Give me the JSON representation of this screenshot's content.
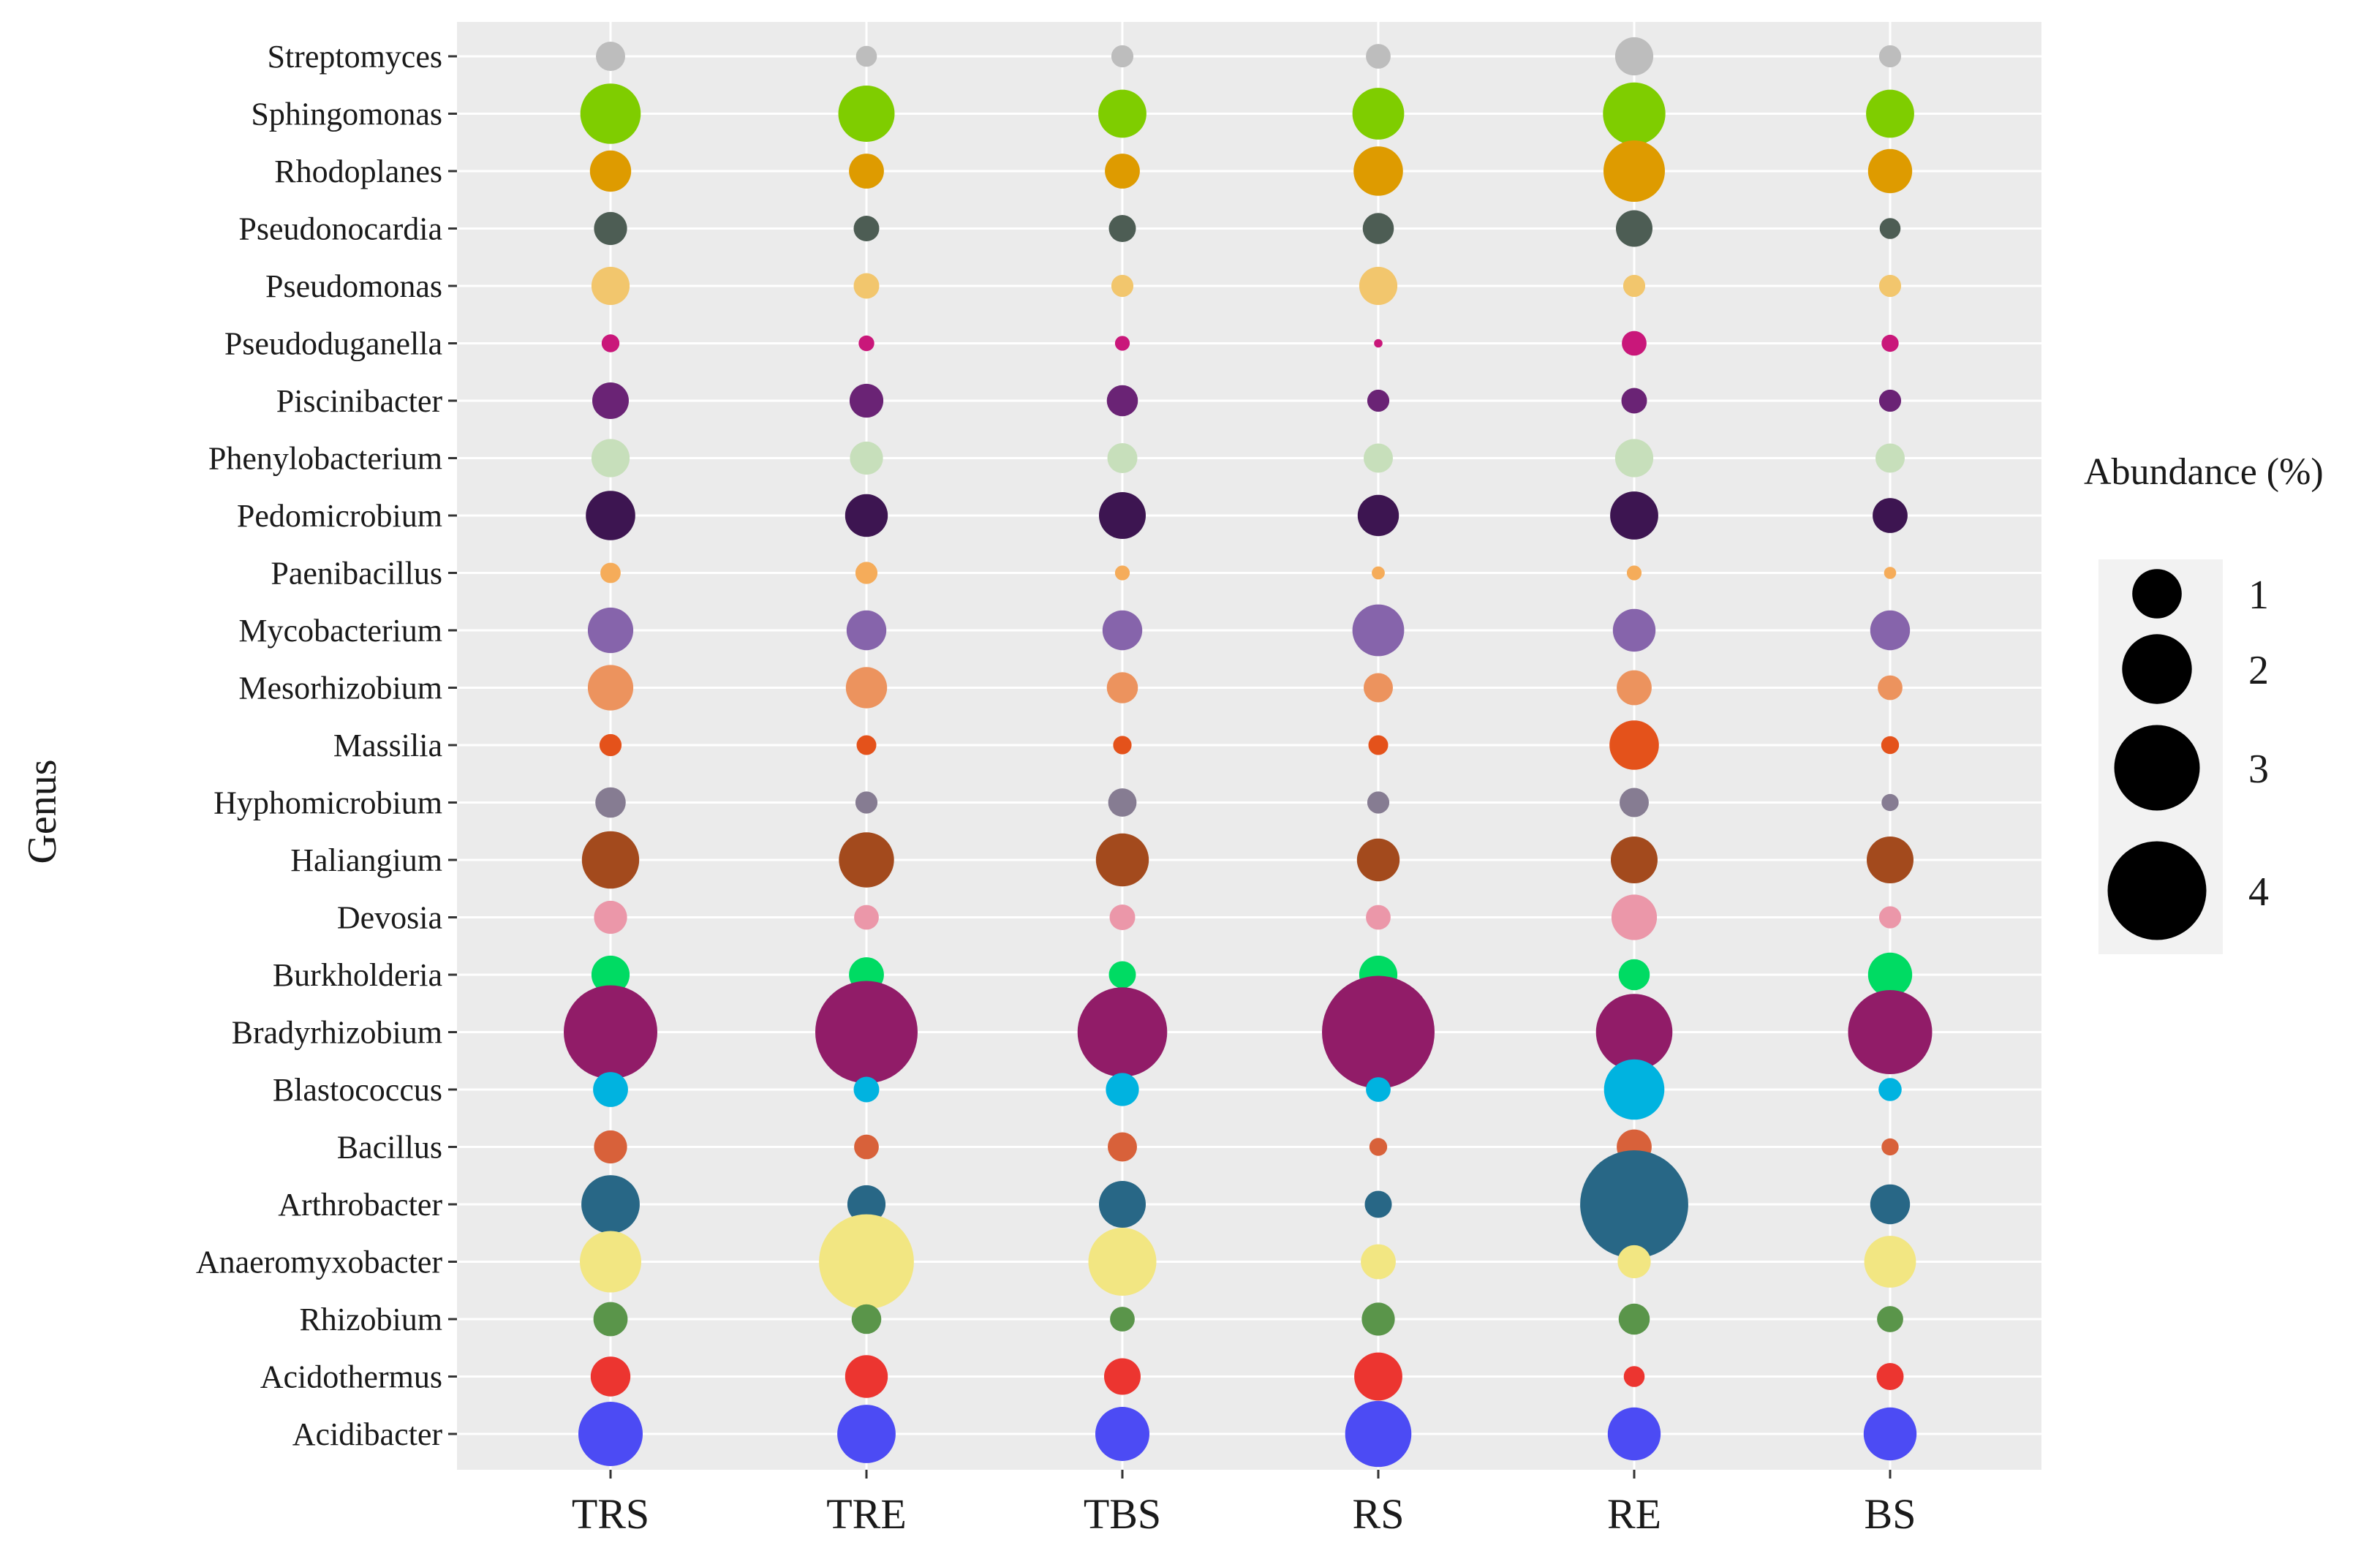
{
  "chart_data": {
    "type": "bubble",
    "ylabel": "Genus",
    "legend_title": "Abundance (%)",
    "legend_values": [
      1,
      2,
      3,
      4
    ],
    "legend_labels": [
      "1",
      "2",
      "3",
      "4"
    ],
    "samples": [
      "TRS",
      "TRE",
      "TBS",
      "RS",
      "RE",
      "BS"
    ],
    "genera": [
      {
        "name": "Streptomyces",
        "color": "#bdbdbd",
        "values": [
          0.35,
          0.18,
          0.2,
          0.25,
          0.6,
          0.2
        ]
      },
      {
        "name": "Sphingomonas",
        "color": "#7fcd00",
        "values": [
          1.5,
          1.3,
          0.95,
          1.1,
          1.6,
          0.95
        ]
      },
      {
        "name": "Rhodoplanes",
        "color": "#de9b00",
        "values": [
          0.7,
          0.5,
          0.5,
          1.0,
          1.55,
          0.8
        ]
      },
      {
        "name": "Pseudonocardia",
        "color": "#4d5d54",
        "values": [
          0.45,
          0.27,
          0.3,
          0.4,
          0.55,
          0.18
        ]
      },
      {
        "name": "Pseudomonas",
        "color": "#f2c66d",
        "values": [
          0.6,
          0.27,
          0.2,
          0.6,
          0.2,
          0.2
        ]
      },
      {
        "name": "Pseudoduganella",
        "color": "#c9177a",
        "values": [
          0.13,
          0.1,
          0.09,
          0.03,
          0.25,
          0.12
        ]
      },
      {
        "name": "Piscinibacter",
        "color": "#6a2375",
        "values": [
          0.55,
          0.47,
          0.4,
          0.2,
          0.27,
          0.2
        ]
      },
      {
        "name": "Phenylobacterium",
        "color": "#c7dfbb",
        "values": [
          0.6,
          0.45,
          0.37,
          0.35,
          0.6,
          0.35
        ]
      },
      {
        "name": "Pedomicrobium",
        "color": "#3d1551",
        "values": [
          1.0,
          0.75,
          0.9,
          0.7,
          0.95,
          0.5
        ]
      },
      {
        "name": "Paenibacillus",
        "color": "#f5ac5a",
        "values": [
          0.17,
          0.2,
          0.09,
          0.07,
          0.09,
          0.06
        ]
      },
      {
        "name": "Mycobacterium",
        "color": "#8664ab",
        "values": [
          0.85,
          0.65,
          0.65,
          1.1,
          0.75,
          0.65
        ]
      },
      {
        "name": "Mesorhizobium",
        "color": "#ec935e",
        "values": [
          0.85,
          0.7,
          0.4,
          0.35,
          0.5,
          0.25
        ]
      },
      {
        "name": "Massilia",
        "color": "#e4521b",
        "values": [
          0.2,
          0.16,
          0.14,
          0.16,
          1.0,
          0.13
        ]
      },
      {
        "name": "Hyphomicrobium",
        "color": "#867c92",
        "values": [
          0.38,
          0.2,
          0.33,
          0.2,
          0.35,
          0.12
        ]
      },
      {
        "name": "Haliangium",
        "color": "#a34a1d",
        "values": [
          1.35,
          1.25,
          1.15,
          0.75,
          0.9,
          0.9
        ]
      },
      {
        "name": "Devosia",
        "color": "#eb97a9",
        "values": [
          0.45,
          0.25,
          0.27,
          0.25,
          0.85,
          0.2
        ]
      },
      {
        "name": "Burkholderia",
        "color": "#00db63",
        "values": [
          0.6,
          0.5,
          0.3,
          0.6,
          0.4,
          0.8
        ]
      },
      {
        "name": "Bradyrhizobium",
        "color": "#911c68",
        "values": [
          3.6,
          4.3,
          3.3,
          5.2,
          2.4,
          2.9
        ]
      },
      {
        "name": "Blastococcus",
        "color": "#00b3e0",
        "values": [
          0.5,
          0.27,
          0.45,
          0.25,
          1.5,
          0.22
        ]
      },
      {
        "name": "Bacillus",
        "color": "#d8613a",
        "values": [
          0.45,
          0.25,
          0.35,
          0.13,
          0.5,
          0.12
        ]
      },
      {
        "name": "Arthrobacter",
        "color": "#286786",
        "values": [
          1.4,
          0.6,
          0.9,
          0.3,
          4.8,
          0.65
        ]
      },
      {
        "name": "Anaeromyxobacter",
        "color": "#f2e682",
        "values": [
          1.55,
          3.7,
          1.9,
          0.5,
          0.45,
          1.1
        ]
      },
      {
        "name": "Rhizobium",
        "color": "#5a954a",
        "values": [
          0.48,
          0.36,
          0.25,
          0.45,
          0.4,
          0.28
        ]
      },
      {
        "name": "Acidothermus",
        "color": "#ec3530",
        "values": [
          0.65,
          0.75,
          0.55,
          0.95,
          0.18,
          0.3
        ]
      },
      {
        "name": "Acidibacter",
        "color": "#4c4bf4",
        "values": [
          1.7,
          1.4,
          1.2,
          1.8,
          1.15,
          1.15
        ]
      }
    ]
  }
}
